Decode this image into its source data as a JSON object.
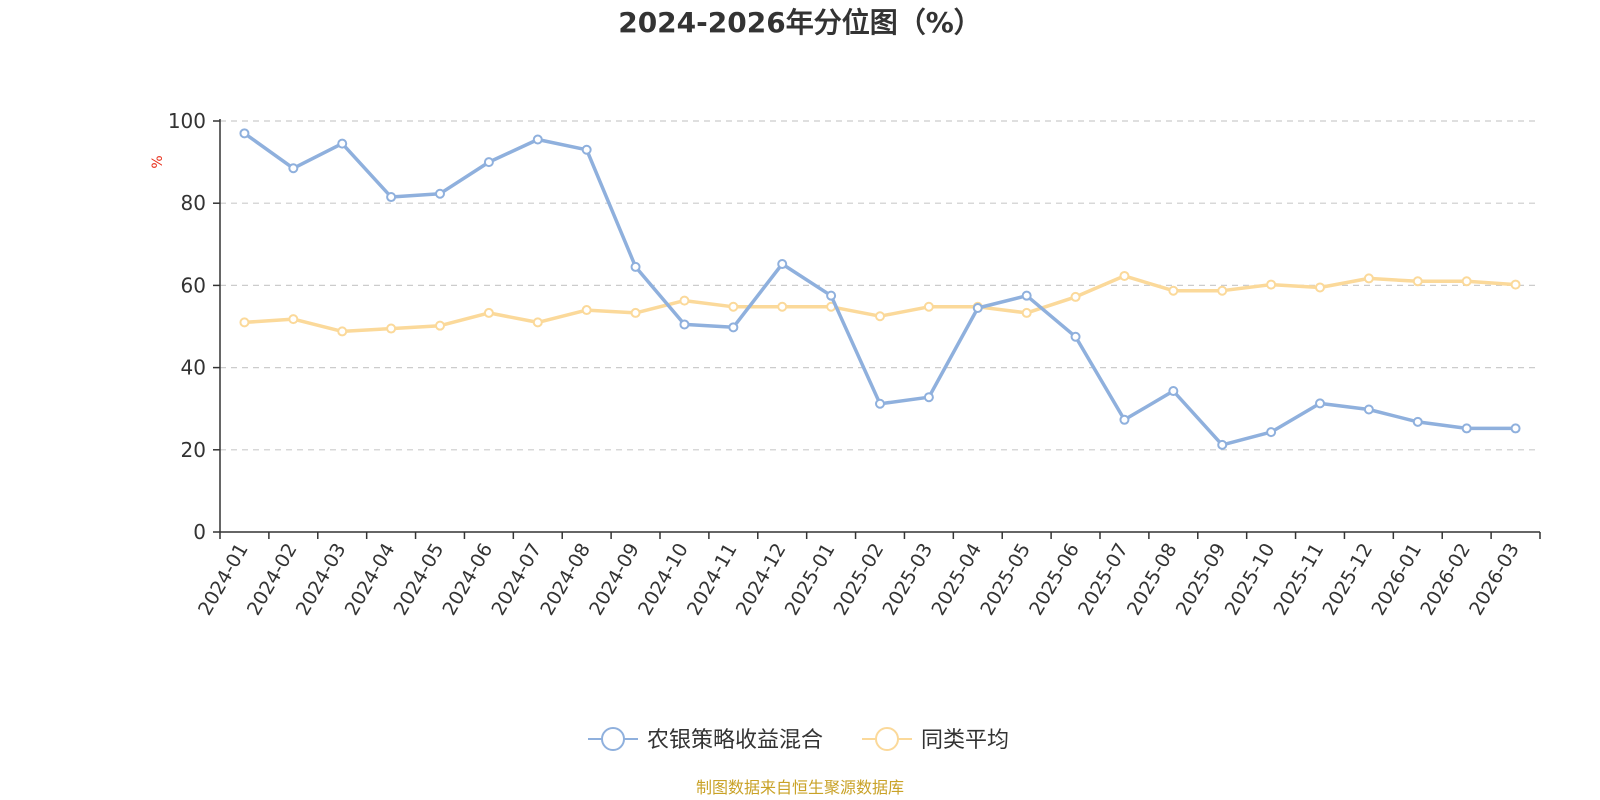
{
  "chart_data": {
    "type": "line",
    "title": "2024-2026年分位图（%）",
    "unit_label": "%",
    "ylim": [
      0,
      100
    ],
    "yticks": [
      0,
      20,
      40,
      60,
      80,
      100
    ],
    "grid": true,
    "legend_position": "bottom-center",
    "categories": [
      "2024-01",
      "2024-02",
      "2024-03",
      "2024-04",
      "2024-05",
      "2024-06",
      "2024-07",
      "2024-08",
      "2024-09",
      "2024-10",
      "2024-11",
      "2024-12",
      "2025-01",
      "2025-02",
      "2025-03",
      "2025-04",
      "2025-05",
      "2025-06",
      "2025-07",
      "2025-08",
      "2025-09",
      "2025-10",
      "2025-11",
      "2025-12",
      "2026-01",
      "2026-02",
      "2026-03"
    ],
    "series": [
      {
        "name": "农银策略收益混合",
        "color": "#8fb0dd",
        "values": [
          97,
          88.5,
          94.5,
          81.5,
          82.3,
          90,
          95.5,
          93,
          64.5,
          50.5,
          49.8,
          65.2,
          57.5,
          31.2,
          32.8,
          54.5,
          57.5,
          47.5,
          27.3,
          34.3,
          21.2,
          24.3,
          31.3,
          29.8,
          26.8,
          25.2,
          25.2
        ]
      },
      {
        "name": "同类平均",
        "color": "#fbd99a",
        "values": [
          51,
          51.8,
          48.8,
          49.5,
          50.2,
          53.3,
          51,
          54,
          53.3,
          56.3,
          54.8,
          54.8,
          54.8,
          52.5,
          54.8,
          54.8,
          53.3,
          57.2,
          62.3,
          58.7,
          58.7,
          60.2,
          59.5,
          61.7,
          61,
          61,
          60.2
        ]
      }
    ]
  },
  "source": "制图数据来自恒生聚源数据库",
  "colors": {
    "axis": "#333333",
    "grid": "#cccccc",
    "unit": "#e8301c",
    "source": "#c9a227"
  }
}
